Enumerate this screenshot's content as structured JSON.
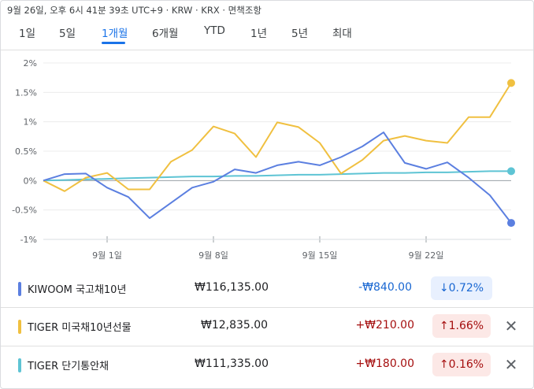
{
  "header": {
    "meta": "9월 26일, 오후 6시 41분 39초 UTC+9 · KRW · KRX · 면책조항"
  },
  "tabs": [
    {
      "label": "1일",
      "active": false
    },
    {
      "label": "5일",
      "active": false
    },
    {
      "label": "1개월",
      "active": true
    },
    {
      "label": "6개월",
      "active": false
    },
    {
      "label": "YTD",
      "active": false
    },
    {
      "label": "1년",
      "active": false
    },
    {
      "label": "5년",
      "active": false
    },
    {
      "label": "최대",
      "active": false
    }
  ],
  "chart_data": {
    "type": "line",
    "y_ticks": [
      "2%",
      "1.5%",
      "1%",
      "0.5%",
      "0%",
      "-0.5%",
      "-1%"
    ],
    "x_ticks": [
      "9월 1일",
      "9월 8일",
      "9월 15일",
      "9월 22일"
    ],
    "ylim": [
      -1,
      2
    ],
    "series": [
      {
        "name": "KIWOOM 국고채10년",
        "color": "#5b7fe0",
        "values": [
          0,
          0.11,
          0.12,
          -0.12,
          -0.28,
          -0.64,
          -0.38,
          -0.12,
          -0.02,
          0.19,
          0.13,
          0.26,
          0.32,
          0.26,
          0.4,
          0.58,
          0.82,
          0.3,
          0.2,
          0.31,
          0.05,
          -0.25,
          -0.72
        ]
      },
      {
        "name": "TIGER 미국채10년선물",
        "color": "#f0c040",
        "values": [
          0,
          -0.18,
          0.05,
          0.13,
          -0.15,
          -0.15,
          0.32,
          0.52,
          0.92,
          0.8,
          0.4,
          0.99,
          0.91,
          0.64,
          0.12,
          0.35,
          0.68,
          0.76,
          0.68,
          0.64,
          1.08,
          1.08,
          1.66
        ]
      },
      {
        "name": "TIGER 단기통안채",
        "color": "#5ec4d4",
        "values": [
          0,
          0.01,
          0.02,
          0.03,
          0.04,
          0.05,
          0.06,
          0.07,
          0.07,
          0.08,
          0.08,
          0.09,
          0.1,
          0.1,
          0.11,
          0.12,
          0.13,
          0.13,
          0.14,
          0.14,
          0.15,
          0.16,
          0.16
        ]
      }
    ]
  },
  "rows": [
    {
      "name": "KIWOOM 국고채10년",
      "color": "#5b7fe0",
      "price": "₩116,135.00",
      "change": "-₩840.00",
      "pct": "↓0.72%",
      "direction": "down",
      "removable": false
    },
    {
      "name": "TIGER 미국채10년선물",
      "color": "#f0c040",
      "price": "₩12,835.00",
      "change": "+₩210.00",
      "pct": "↑1.66%",
      "direction": "up",
      "removable": true,
      "close": "✕"
    },
    {
      "name": "TIGER 단기통안채",
      "color": "#5ec4d4",
      "price": "₩111,335.00",
      "change": "+₩180.00",
      "pct": "↑0.16%",
      "direction": "up",
      "removable": true,
      "close": "✕"
    }
  ],
  "colors": {
    "up_text": "#a50e0e",
    "up_bg": "#fce8e6",
    "down_text": "#1967d2",
    "down_bg": "#e8f0fe"
  }
}
